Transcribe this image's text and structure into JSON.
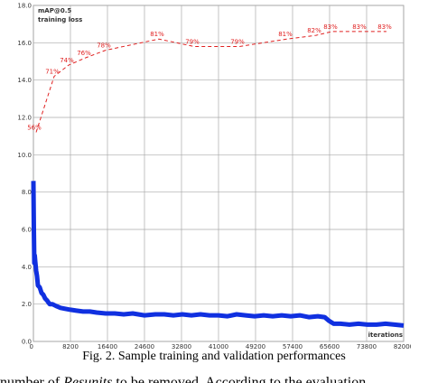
{
  "chart_data": {
    "type": "line",
    "x_axis_label": "iterations",
    "xlim": [
      0,
      82000
    ],
    "xticks": [
      0,
      8200,
      16400,
      24600,
      32800,
      41000,
      49200,
      57400,
      65600,
      73800,
      82000
    ],
    "ylim": [
      0,
      18
    ],
    "yticks": [
      {
        "value": 0,
        "label": "0.0"
      },
      {
        "value": 2,
        "label": "2.0"
      },
      {
        "value": 4,
        "label": "4.0"
      },
      {
        "value": 6,
        "label": "6.0"
      },
      {
        "value": 8,
        "label": "8.0"
      },
      {
        "value": 10,
        "label": "10.0"
      },
      {
        "value": 12,
        "label": "12.0"
      },
      {
        "value": 14,
        "label": "14.0"
      },
      {
        "value": 16,
        "label": "16.0"
      },
      {
        "value": 18,
        "label": "18.0"
      }
    ],
    "y2lim": [
      0,
      90
    ],
    "grid": true,
    "series": [
      {
        "name": "mAP@0.5",
        "color": "#e02020",
        "axis": "y2",
        "line_style": "dashed",
        "x": [
          600,
          4600,
          7800,
          11600,
          16000,
          27800,
          35600,
          45600,
          56200,
          62600,
          66200,
          72600,
          78200
        ],
        "values": [
          56,
          71,
          74,
          76,
          78,
          81,
          79,
          79,
          81,
          82,
          83,
          83,
          83
        ],
        "value_labels": [
          "56%",
          "71%",
          "74%",
          "76%",
          "78%",
          "81%",
          "79%",
          "79%",
          "81%",
          "82%",
          "83%",
          "83%",
          "83%"
        ]
      },
      {
        "name": "training loss",
        "color": "#1030e0",
        "x": [
          0,
          100,
          200,
          300,
          400,
          600,
          800,
          1000,
          1400,
          1800,
          2200,
          2600,
          3000,
          3600,
          4200,
          5000,
          6000,
          7000,
          8200,
          9500,
          11000,
          12500,
          14000,
          16000,
          18000,
          20000,
          22000,
          24600,
          27000,
          29000,
          31000,
          33000,
          35000,
          37000,
          39000,
          41000,
          43000,
          45000,
          47000,
          49000,
          51000,
          53000,
          55000,
          57000,
          59000,
          61000,
          63000,
          64500,
          65500,
          66500,
          68000,
          70000,
          72000,
          74000,
          76000,
          78000,
          80000,
          82000
        ],
        "values": [
          8.6,
          6.0,
          4.2,
          4.6,
          4.3,
          3.8,
          3.5,
          3.0,
          2.9,
          2.6,
          2.5,
          2.3,
          2.2,
          2.0,
          2.0,
          1.9,
          1.8,
          1.75,
          1.7,
          1.65,
          1.6,
          1.6,
          1.55,
          1.5,
          1.5,
          1.45,
          1.5,
          1.4,
          1.45,
          1.45,
          1.4,
          1.45,
          1.4,
          1.45,
          1.4,
          1.4,
          1.35,
          1.45,
          1.4,
          1.35,
          1.4,
          1.35,
          1.4,
          1.35,
          1.4,
          1.3,
          1.35,
          1.3,
          1.1,
          0.95,
          0.95,
          0.9,
          0.95,
          0.9,
          0.9,
          0.95,
          0.9,
          0.85
        ]
      }
    ]
  },
  "caption": "Fig. 2.  Sample training and validation performances",
  "body_text": [
    "number of ",
    "Resunits",
    " to be removed. According to the evaluation"
  ]
}
